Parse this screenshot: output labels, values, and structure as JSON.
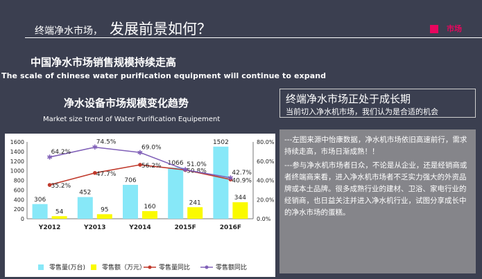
{
  "header": {
    "title_small": "终端净水市场，",
    "title_big": "发展前景如何？",
    "tag": "市场"
  },
  "headings": {
    "cn": "中国净水市场销售规模持续走高",
    "en": "The scale of chinese water purification equipment will continue to expand"
  },
  "right_panel": {
    "title": "终端净水市场正处于成长期",
    "subtitle": "当前切入净水机市场，我们认为是合适的机会",
    "note1": "---左图来源中怡康数据，净水机市场依旧高速前行，需求持续走高，市场日渐成熟！！",
    "note2": "---参与净水机市场者日众，不论是从企业，还是经销商或者终端商来看，进入净水机市场者不乏实力强大的外资品牌或本土品牌。很多成熟行业的建材、卫浴、家电行业的经销商，也日益关注并进入净水机行业，试图分享成长中的净水市场的蛋糕。"
  },
  "colors": {
    "background": "#3b3f50",
    "accent": "#e8065e",
    "bar_volume": "#87e8f8",
    "bar_amount": "#fafa00",
    "line_volume": "#c0392b",
    "line_amount": "#8060b8"
  },
  "chart_data": {
    "type": "bar",
    "title": "净水设备市场规模变化趋势",
    "subtitle": "Market size trend of Water Purification Equipement",
    "categories": [
      "Y2012",
      "Y2013",
      "Y2014",
      "2015F",
      "2016F"
    ],
    "ylim": [
      0,
      1600
    ],
    "yticks": [
      0,
      200,
      400,
      600,
      800,
      1000,
      1200,
      1400,
      1600
    ],
    "y2lim": [
      0,
      80
    ],
    "y2ticks": [
      "0.0%",
      "20.0%",
      "40.0%",
      "60.0%",
      "80.0%"
    ],
    "y2ticks_values": [
      0,
      20,
      40,
      60,
      80
    ],
    "legend_position": "bottom",
    "grid": false,
    "series": [
      {
        "name": "零售量(万台)",
        "kind": "bar",
        "axis": "left",
        "values": [
          306,
          452,
          706,
          1066,
          1502
        ],
        "labels": [
          "306",
          "452",
          "706",
          "1066",
          "1502"
        ]
      },
      {
        "name": "零售额（万元）",
        "kind": "bar",
        "axis": "left",
        "values": [
          54,
          95,
          160,
          241,
          344
        ],
        "labels": [
          "54",
          "95",
          "160",
          "241",
          "344"
        ]
      },
      {
        "name": "零售量同比",
        "kind": "line",
        "axis": "right",
        "values": [
          35.2,
          47.7,
          56.2,
          50.8,
          40.9
        ],
        "labels": [
          "35.2%",
          "47.7%",
          "56.2%",
          "50.8%",
          "40.9%"
        ]
      },
      {
        "name": "零售额同比",
        "kind": "line",
        "axis": "right",
        "values": [
          64.2,
          74.5,
          69.0,
          51.0,
          42.7
        ],
        "labels": [
          "64.2%",
          "74.5%",
          "69.0%",
          "51.0%",
          "42.7%"
        ]
      }
    ]
  }
}
